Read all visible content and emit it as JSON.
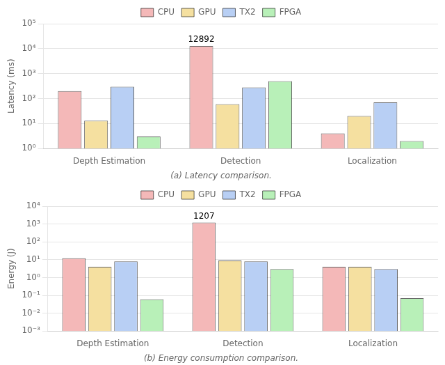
{
  "chart_data": [
    {
      "type": "bar",
      "categories": [
        "Depth Estimation",
        "Detection",
        "Localization"
      ],
      "series": [
        {
          "name": "CPU",
          "color": "#f4b8b8",
          "values": [
            200,
            12892,
            4
          ]
        },
        {
          "name": "GPU",
          "color": "#f5e0a0",
          "values": [
            13,
            60,
            20
          ]
        },
        {
          "name": "TX2",
          "color": "#b8cff4",
          "values": [
            300,
            280,
            70
          ]
        },
        {
          "name": "FPGA",
          "color": "#b8f0b8",
          "values": [
            3,
            500,
            2
          ]
        }
      ],
      "ylabel": "Latency (ms)",
      "caption": "(a) Latency comparison.",
      "annotations": [
        {
          "text": "12892",
          "x": "Detection",
          "series": "CPU"
        }
      ],
      "log": "y",
      "ylim": [
        1,
        100000
      ],
      "yticks": [
        {
          "value": 1,
          "label": "10⁰"
        },
        {
          "value": 10,
          "label": "10¹"
        },
        {
          "value": 100,
          "label": "10²"
        },
        {
          "value": 1000,
          "label": "10³"
        },
        {
          "value": 10000,
          "label": "10⁴"
        },
        {
          "value": 100000,
          "label": "10⁵"
        }
      ],
      "grid": "y",
      "legend": "top"
    },
    {
      "type": "bar",
      "categories": [
        "Depth Estimation",
        "Detection",
        "Localization"
      ],
      "series": [
        {
          "name": "CPU",
          "color": "#f4b8b8",
          "values": [
            12,
            1207,
            4
          ]
        },
        {
          "name": "GPU",
          "color": "#f5e0a0",
          "values": [
            4,
            9,
            4
          ]
        },
        {
          "name": "TX2",
          "color": "#b8cff4",
          "values": [
            8,
            8,
            3
          ]
        },
        {
          "name": "FPGA",
          "color": "#b8f0b8",
          "values": [
            0.06,
            3,
            0.07
          ]
        }
      ],
      "ylabel": "Energy (J)",
      "caption": "(b) Energy consumption comparison.",
      "annotations": [
        {
          "text": "1207",
          "x": "Detection",
          "series": "CPU"
        }
      ],
      "log": "y",
      "ylim": [
        0.001,
        10000
      ],
      "yticks": [
        {
          "value": 0.001,
          "label": "10⁻³"
        },
        {
          "value": 0.01,
          "label": "10⁻²"
        },
        {
          "value": 0.1,
          "label": "10⁻¹"
        },
        {
          "value": 1,
          "label": "10⁰"
        },
        {
          "value": 10,
          "label": "10¹"
        },
        {
          "value": 100,
          "label": "10²"
        },
        {
          "value": 1000,
          "label": "10³"
        },
        {
          "value": 10000,
          "label": "10⁴"
        }
      ],
      "grid": "y",
      "legend": "top"
    }
  ]
}
